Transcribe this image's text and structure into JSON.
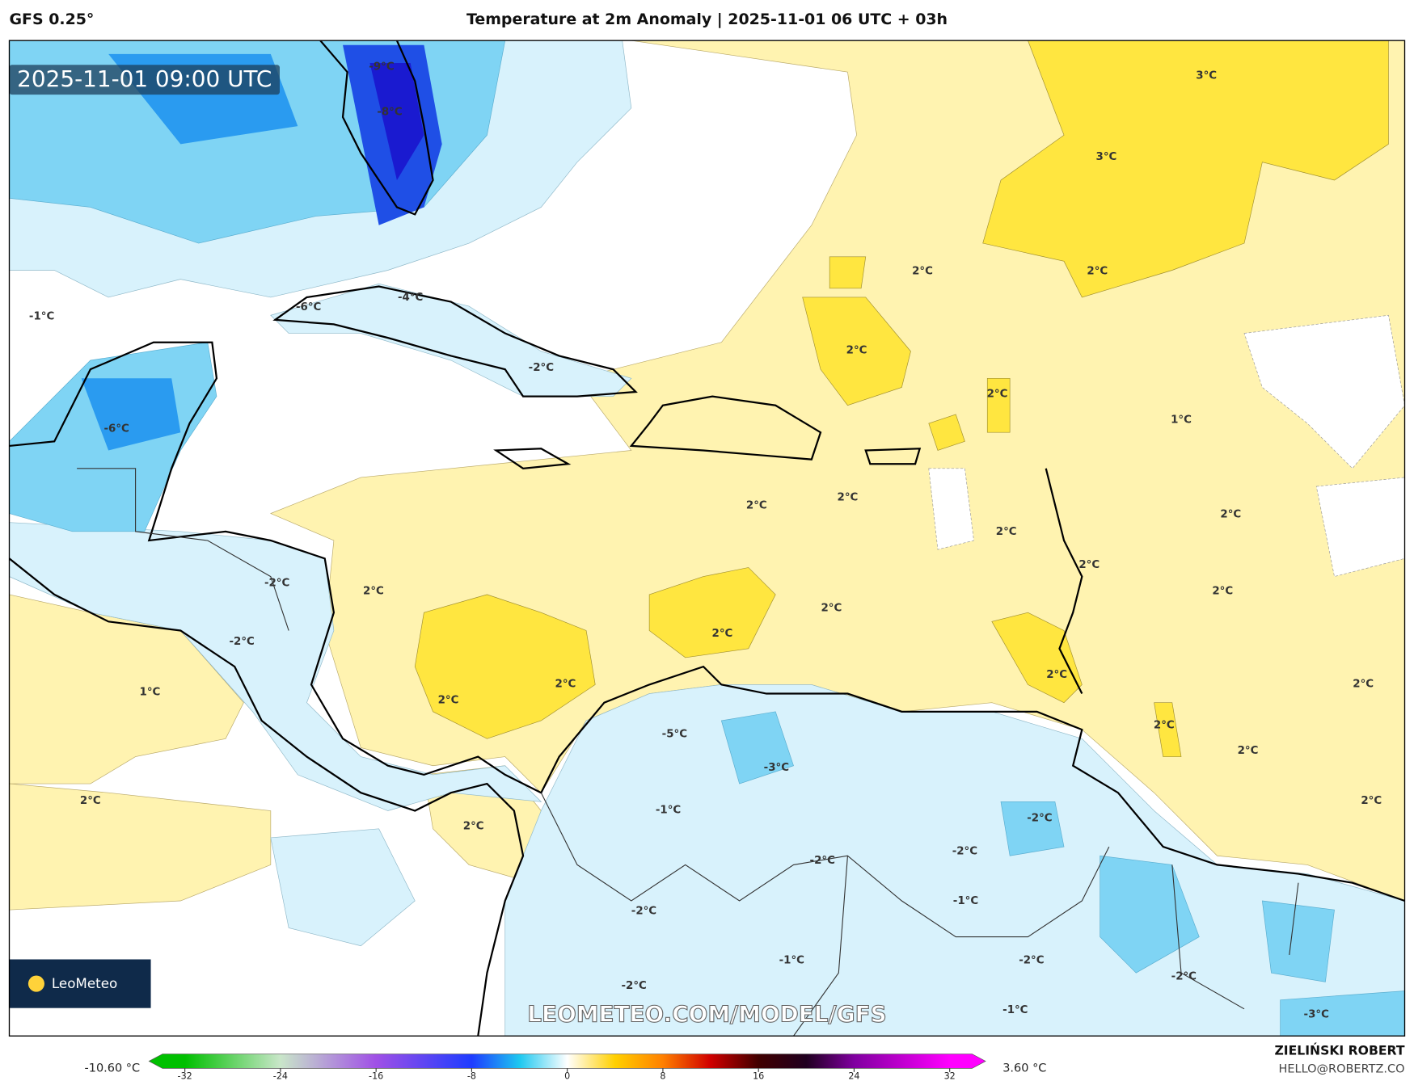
{
  "header": {
    "model": "GFS 0.25°",
    "title": "Temperature at 2m Anomaly | 2025-11-01 06 UTC + 03h"
  },
  "map": {
    "timestamp": "2025-11-01 09:00 UTC",
    "watermark": "LEOMETEO.COM/MODEL/GFS",
    "logo": "LeoMeteo",
    "contour_labels": [
      "-9°C",
      "-8°C",
      "3°C",
      "3°C",
      "2°C",
      "2°C",
      "-1°C",
      "-6°C",
      "-4°C",
      "2°C",
      "-2°C",
      "2°C",
      "1°C",
      "-6°C",
      "2°C",
      "2°C",
      "2°C",
      "2°C",
      "2°C",
      "-2°C",
      "2°C",
      "2°C",
      "2°C",
      "2°C",
      "-2°C",
      "2°C",
      "2°C",
      "2°C",
      "1°C",
      "2°C",
      "2°C",
      "-5°C",
      "2°C",
      "-3°C",
      "2°C",
      "2°C",
      "-1°C",
      "-2°C",
      "2°C",
      "-2°C",
      "-2°C",
      "-1°C",
      "-2°C",
      "-1°C",
      "-2°C",
      "-2°C",
      "-2°C",
      "-1°C",
      "-3°C"
    ]
  },
  "colorbar": {
    "min_label": "-10.60 °C",
    "max_label": "3.60 °C",
    "lim": [
      -35,
      35
    ],
    "ticks": [
      -32,
      -24,
      -16,
      -8,
      0,
      8,
      16,
      24,
      32
    ]
  },
  "credits": {
    "name": "ZIELIŃSKI ROBERT",
    "email": "HELLO@ROBERTZ.CO"
  }
}
